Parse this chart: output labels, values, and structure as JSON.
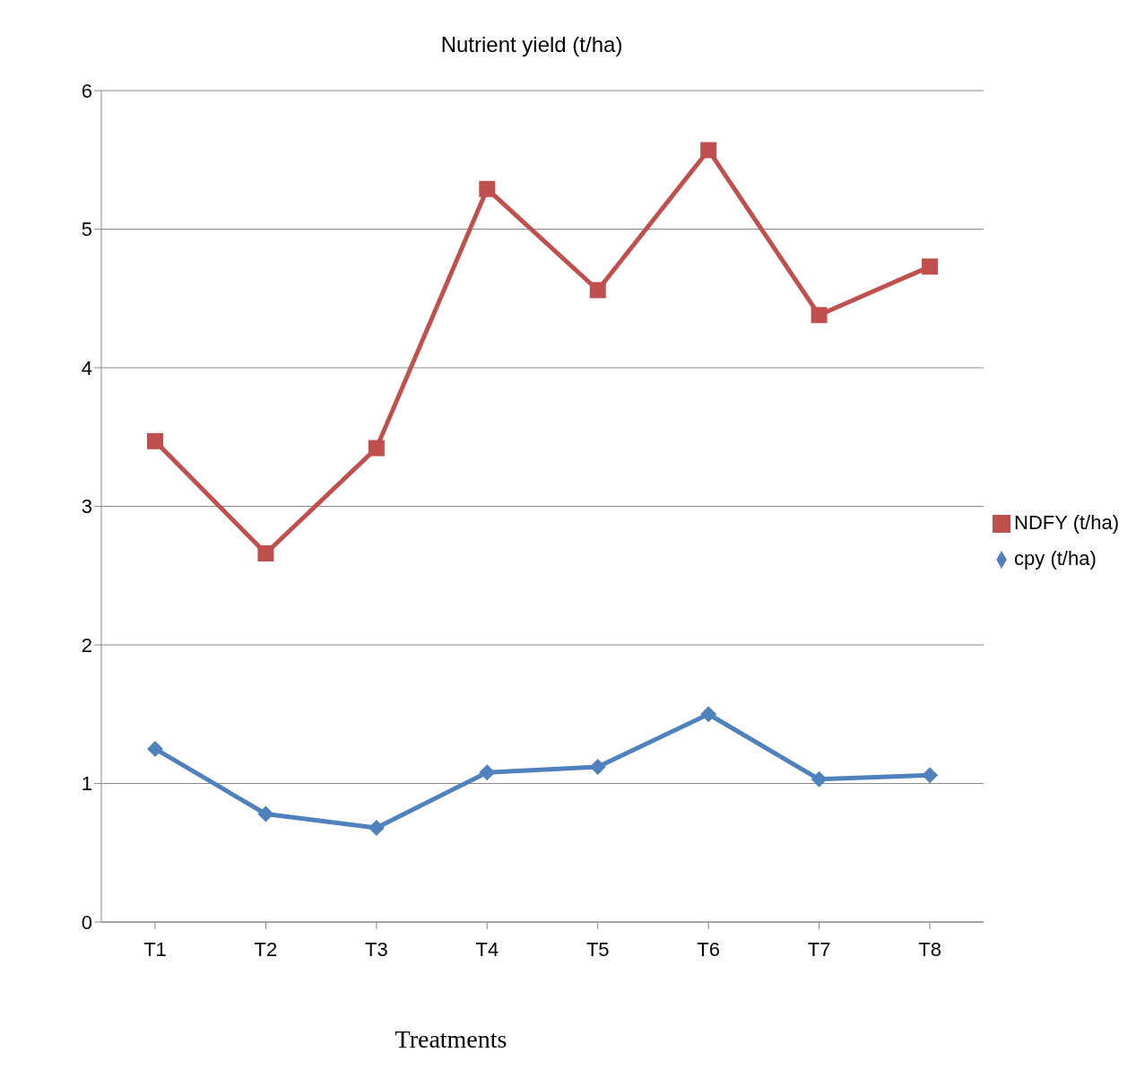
{
  "chart_data": {
    "type": "line",
    "title": "Nutrient yield (t/ha)",
    "xlabel": "Treatments",
    "categories": [
      "T1",
      "T2",
      "T3",
      "T4",
      "T5",
      "T6",
      "T7",
      "T8"
    ],
    "series": [
      {
        "name": "NDFY (t/ha)",
        "color": "#c0504d",
        "marker": "square",
        "values": [
          3.47,
          2.66,
          3.42,
          5.29,
          4.56,
          5.57,
          4.38,
          4.73
        ]
      },
      {
        "name": "cpy (t/ha)",
        "color": "#4f81bd",
        "marker": "diamond",
        "values": [
          1.25,
          0.78,
          0.68,
          1.08,
          1.12,
          1.5,
          1.03,
          1.06
        ]
      }
    ],
    "ylim": [
      0,
      6
    ],
    "yticks": [
      0,
      1,
      2,
      3,
      4,
      5,
      6
    ],
    "grid": "y",
    "legend": "right",
    "line_style": "solid"
  }
}
